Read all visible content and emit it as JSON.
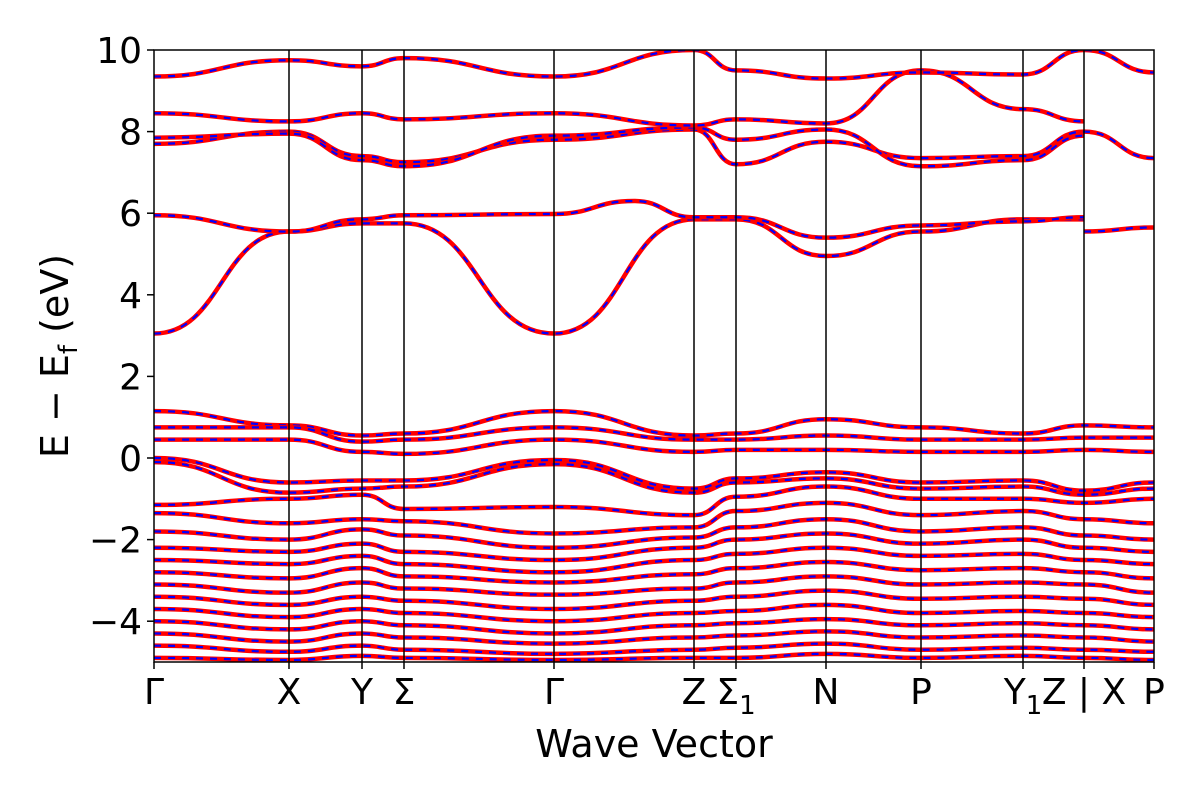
{
  "chart_data": {
    "type": "line",
    "title": "",
    "xlabel": "Wave Vector",
    "ylabel": "E − E_f (eV)",
    "ylabel_parts": {
      "main": "E − E",
      "sub": "f",
      "unit": " (eV)"
    },
    "ylim": [
      -5,
      10
    ],
    "yticks": [
      -4,
      -2,
      0,
      2,
      4,
      6,
      8,
      10
    ],
    "ytick_labels": [
      "−4",
      "−2",
      "0",
      "2",
      "4",
      "6",
      "8",
      "10"
    ],
    "grid": false,
    "legend": "none",
    "colors": {
      "band_solid": "#ff0000",
      "band_dashed": "#0000ff",
      "axis": "#000000",
      "background": "#ffffff"
    },
    "kpoints": [
      {
        "label": "Γ",
        "sub": "",
        "x": 0.0
      },
      {
        "label": "X",
        "sub": "",
        "x": 1.35
      },
      {
        "label": "Y",
        "sub": "",
        "x": 2.08
      },
      {
        "label": "Σ",
        "sub": "",
        "x": 2.5
      },
      {
        "label": "Γ",
        "sub": "",
        "x": 4.0
      },
      {
        "label": "Z",
        "sub": "",
        "x": 5.4
      },
      {
        "label": "Σ",
        "sub": "1",
        "x": 5.82
      },
      {
        "label": "N",
        "sub": "",
        "x": 6.72
      },
      {
        "label": "P",
        "sub": "",
        "x": 7.67
      },
      {
        "label": "Y",
        "sub": "1",
        "x": 8.69
      },
      {
        "label": "Z | X",
        "sub": "",
        "x": 9.3
      },
      {
        "label": "P",
        "sub": "",
        "x": 10.0
      }
    ],
    "break_at": 9.3,
    "series": [
      {
        "x": [
          0,
          1.35,
          2.08,
          2.5,
          4.0,
          5.4,
          5.82,
          6.72,
          7.67,
          8.69,
          9.3
        ],
        "y": [
          3.05,
          5.55,
          5.75,
          5.75,
          3.05,
          5.85,
          5.85,
          4.95,
          5.55,
          5.85,
          5.85
        ]
      },
      {
        "x": [
          0,
          1.35,
          2.08,
          2.5,
          4.0,
          4.8,
          5.4,
          5.82,
          6.72,
          7.67,
          8.69,
          9.3
        ],
        "y": [
          5.95,
          5.55,
          5.85,
          5.95,
          5.98,
          6.3,
          5.9,
          5.9,
          5.4,
          5.7,
          5.8,
          5.9
        ]
      },
      {
        "x": [
          9.3,
          10.0
        ],
        "y": [
          5.55,
          5.65
        ]
      },
      {
        "x": [
          0,
          1.35,
          2.08,
          2.5,
          4.0,
          5.4,
          5.82,
          6.72,
          7.67,
          8.69,
          9.3,
          10.0
        ],
        "y": [
          7.7,
          8.0,
          7.4,
          7.25,
          7.8,
          8.05,
          7.2,
          7.75,
          7.35,
          7.4,
          8.0,
          7.35
        ]
      },
      {
        "x": [
          0,
          1.35,
          2.08,
          2.5,
          4.0,
          5.4,
          5.82,
          6.72,
          7.67,
          8.69,
          9.3
        ],
        "y": [
          7.85,
          7.95,
          7.3,
          7.15,
          7.9,
          8.1,
          7.8,
          8.05,
          7.15,
          7.3,
          7.9
        ]
      },
      {
        "x": [
          0,
          1.35,
          2.08,
          2.5,
          4.0,
          5.4,
          5.82,
          6.72,
          7.67,
          8.69,
          9.3
        ],
        "y": [
          8.45,
          8.25,
          8.45,
          8.3,
          8.45,
          8.15,
          8.3,
          8.2,
          9.5,
          8.55,
          8.25
        ]
      },
      {
        "x": [
          0,
          1.35,
          2.08,
          2.5,
          4.0,
          5.4,
          5.82,
          6.72,
          7.67,
          8.69,
          9.3,
          10.0
        ],
        "y": [
          9.35,
          9.75,
          9.6,
          9.8,
          9.35,
          10.0,
          9.5,
          9.3,
          9.45,
          9.4,
          10.0,
          9.45
        ]
      },
      {
        "x": [
          0,
          1.35,
          2.08,
          2.5,
          4.0,
          5.4,
          5.82,
          6.72,
          7.67,
          8.69,
          9.3,
          10.0
        ],
        "y": [
          1.15,
          0.8,
          0.55,
          0.6,
          1.15,
          0.55,
          0.6,
          0.95,
          0.75,
          0.6,
          0.8,
          0.75
        ]
      },
      {
        "x": [
          0,
          1.35,
          2.08,
          2.5,
          4.0,
          5.4,
          5.82,
          6.72,
          7.67,
          8.69,
          9.3,
          10.0
        ],
        "y": [
          0.75,
          0.75,
          0.4,
          0.45,
          0.75,
          0.45,
          0.45,
          0.55,
          0.45,
          0.45,
          0.5,
          0.5
        ]
      },
      {
        "x": [
          0,
          1.35,
          2.08,
          2.5,
          4.0,
          5.4,
          5.82,
          6.72,
          7.67,
          8.69,
          9.3,
          10.0
        ],
        "y": [
          0.45,
          0.45,
          0.15,
          0.1,
          0.45,
          0.15,
          0.2,
          0.2,
          0.15,
          0.15,
          0.2,
          0.15
        ]
      },
      {
        "x": [
          0,
          1.35,
          2.08,
          2.5,
          4.0,
          5.4,
          5.82,
          6.72,
          7.67,
          8.69,
          9.3,
          10.0
        ],
        "y": [
          0.0,
          -0.6,
          -0.55,
          -0.55,
          -0.05,
          -0.75,
          -0.5,
          -0.35,
          -0.6,
          -0.55,
          -0.8,
          -0.6
        ]
      },
      {
        "x": [
          0,
          1.35,
          2.08,
          2.5,
          4.0,
          5.4,
          5.82,
          6.72,
          7.67,
          8.69,
          9.3,
          10.0
        ],
        "y": [
          -0.1,
          -0.85,
          -0.75,
          -0.7,
          -0.15,
          -0.85,
          -0.6,
          -0.5,
          -0.75,
          -0.7,
          -0.9,
          -0.75
        ]
      },
      {
        "x": [
          0,
          1.35,
          2.08,
          2.5,
          4.0,
          5.4,
          5.82,
          6.72,
          7.67,
          8.69,
          9.3,
          10.0
        ],
        "y": [
          -1.15,
          -1.0,
          -0.9,
          -1.25,
          -1.2,
          -1.4,
          -0.95,
          -0.7,
          -1.0,
          -1.0,
          -1.1,
          -1.0
        ]
      },
      {
        "x": [
          0,
          1.35,
          2.08,
          2.5,
          4.0,
          5.4,
          5.82,
          6.72,
          7.67,
          8.69,
          9.3,
          10.0
        ],
        "y": [
          -1.35,
          -1.6,
          -1.5,
          -1.55,
          -1.85,
          -1.7,
          -1.3,
          -1.1,
          -1.4,
          -1.3,
          -1.5,
          -1.6
        ]
      },
      {
        "x": [
          0,
          1.35,
          2.08,
          2.5,
          4.0,
          5.4,
          5.82,
          6.72,
          7.67,
          8.69,
          9.3,
          10.0
        ],
        "y": [
          -1.8,
          -2.0,
          -1.75,
          -1.9,
          -2.2,
          -1.95,
          -1.7,
          -1.5,
          -1.8,
          -1.7,
          -1.9,
          -2.0
        ]
      },
      {
        "x": [
          0,
          1.35,
          2.08,
          2.5,
          4.0,
          5.4,
          5.82,
          6.72,
          7.67,
          8.69,
          9.3,
          10.0
        ],
        "y": [
          -2.2,
          -2.3,
          -2.1,
          -2.3,
          -2.5,
          -2.2,
          -2.0,
          -1.85,
          -2.1,
          -2.0,
          -2.2,
          -2.3
        ]
      },
      {
        "x": [
          0,
          1.35,
          2.08,
          2.5,
          4.0,
          5.4,
          5.82,
          6.72,
          7.67,
          8.69,
          9.3,
          10.0
        ],
        "y": [
          -2.5,
          -2.6,
          -2.4,
          -2.6,
          -2.8,
          -2.5,
          -2.35,
          -2.2,
          -2.4,
          -2.35,
          -2.5,
          -2.6
        ]
      },
      {
        "x": [
          0,
          1.35,
          2.08,
          2.5,
          4.0,
          5.4,
          5.82,
          6.72,
          7.67,
          8.69,
          9.3,
          10.0
        ],
        "y": [
          -2.8,
          -2.95,
          -2.7,
          -2.9,
          -3.05,
          -2.85,
          -2.7,
          -2.55,
          -2.75,
          -2.7,
          -2.8,
          -2.95
        ]
      },
      {
        "x": [
          0,
          1.35,
          2.08,
          2.5,
          4.0,
          5.4,
          5.82,
          6.72,
          7.67,
          8.69,
          9.3,
          10.0
        ],
        "y": [
          -3.1,
          -3.3,
          -3.05,
          -3.2,
          -3.35,
          -3.2,
          -3.05,
          -2.9,
          -3.1,
          -3.05,
          -3.1,
          -3.3
        ]
      },
      {
        "x": [
          0,
          1.35,
          2.08,
          2.5,
          4.0,
          5.4,
          5.82,
          6.72,
          7.67,
          8.69,
          9.3,
          10.0
        ],
        "y": [
          -3.4,
          -3.6,
          -3.4,
          -3.5,
          -3.7,
          -3.5,
          -3.4,
          -3.25,
          -3.45,
          -3.4,
          -3.45,
          -3.6
        ]
      },
      {
        "x": [
          0,
          1.35,
          2.08,
          2.5,
          4.0,
          5.4,
          5.82,
          6.72,
          7.67,
          8.69,
          9.3,
          10.0
        ],
        "y": [
          -3.7,
          -3.9,
          -3.7,
          -3.8,
          -4.0,
          -3.8,
          -3.75,
          -3.6,
          -3.8,
          -3.75,
          -3.8,
          -3.9
        ]
      },
      {
        "x": [
          0,
          1.35,
          2.08,
          2.5,
          4.0,
          5.4,
          5.82,
          6.72,
          7.67,
          8.69,
          9.3,
          10.0
        ],
        "y": [
          -4.0,
          -4.2,
          -4.0,
          -4.1,
          -4.3,
          -4.1,
          -4.05,
          -3.95,
          -4.1,
          -4.05,
          -4.1,
          -4.2
        ]
      },
      {
        "x": [
          0,
          1.35,
          2.08,
          2.5,
          4.0,
          5.4,
          5.82,
          6.72,
          7.67,
          8.69,
          9.3,
          10.0
        ],
        "y": [
          -4.3,
          -4.5,
          -4.3,
          -4.4,
          -4.55,
          -4.4,
          -4.35,
          -4.25,
          -4.4,
          -4.35,
          -4.4,
          -4.5
        ]
      },
      {
        "x": [
          0,
          1.35,
          2.08,
          2.5,
          4.0,
          5.4,
          5.82,
          6.72,
          7.67,
          8.69,
          9.3,
          10.0
        ],
        "y": [
          -4.6,
          -4.75,
          -4.6,
          -4.7,
          -4.8,
          -4.7,
          -4.65,
          -4.55,
          -4.7,
          -4.65,
          -4.7,
          -4.75
        ]
      },
      {
        "x": [
          0,
          1.35,
          2.08,
          2.5,
          4.0,
          5.4,
          5.82,
          6.72,
          7.67,
          8.69,
          9.3,
          10.0
        ],
        "y": [
          -4.9,
          -4.95,
          -4.85,
          -4.9,
          -4.95,
          -4.9,
          -4.9,
          -4.8,
          -4.9,
          -4.85,
          -4.9,
          -4.95
        ]
      }
    ]
  }
}
